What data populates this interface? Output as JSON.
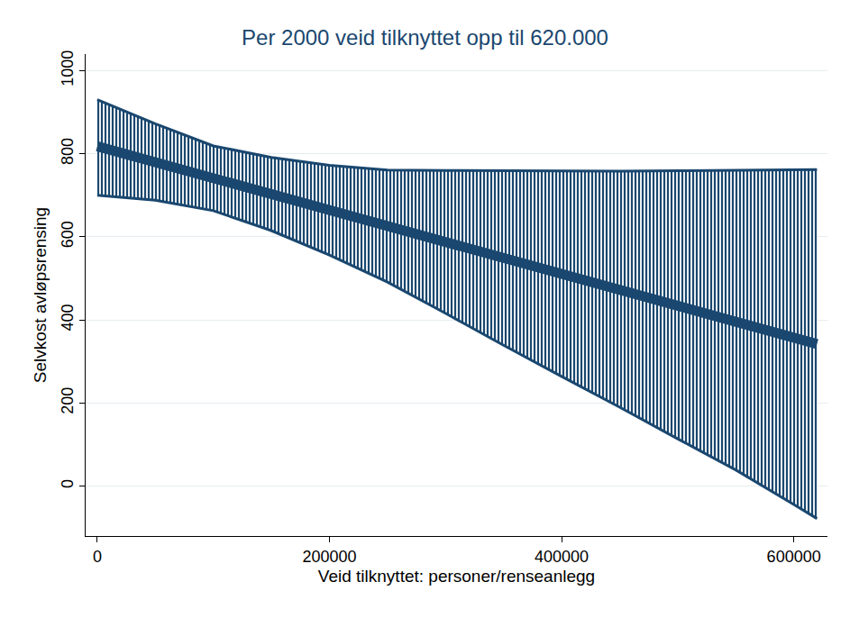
{
  "chart_data": {
    "type": "line",
    "title": "Per 2000 veid tilknyttet opp til 620.000",
    "x_label": "Veid tilknyttet: personer/renseanlegg",
    "y_label": "Selvkost avløpsrensing",
    "x": [
      0,
      50000,
      100000,
      150000,
      200000,
      250000,
      300000,
      350000,
      400000,
      450000,
      500000,
      550000,
      600000,
      620000
    ],
    "values": [
      818,
      780,
      741,
      703,
      664,
      626,
      588,
      549,
      511,
      473,
      434,
      396,
      357,
      342
    ],
    "ci_upper": [
      930,
      872,
      819,
      791,
      772,
      761,
      760,
      759,
      758,
      758,
      759,
      760,
      761,
      762
    ],
    "ci_lower": [
      700,
      688,
      663,
      615,
      556,
      491,
      416,
      339,
      264,
      190,
      114,
      39,
      -44,
      -78
    ],
    "color": "#1a476f",
    "xlim": [
      -10000,
      629000
    ],
    "ylim": [
      -120,
      1040
    ],
    "xticks": [
      0,
      200000,
      400000,
      600000
    ],
    "yticks": [
      0,
      200,
      400,
      600,
      800,
      1000
    ],
    "grid": true
  }
}
